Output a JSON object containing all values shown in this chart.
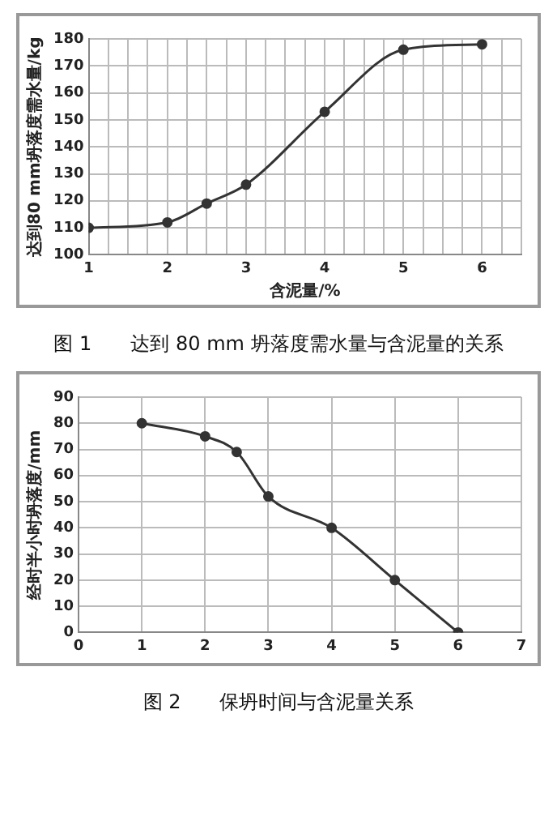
{
  "chart_data": [
    {
      "type": "line",
      "title": "图 1　　达到 80 mm 坍落度需水量与含泥量的关系",
      "xlabel": "含泥量/%",
      "ylabel": "达到80 mm坍落度需水量/kg",
      "x": [
        1,
        2,
        2.5,
        3,
        4,
        5,
        6
      ],
      "series": [
        {
          "color": "#333333",
          "values": [
            110,
            112,
            119,
            126,
            153,
            176,
            178
          ]
        }
      ],
      "xlim": [
        1,
        6.5
      ],
      "xticks": [
        1,
        {
          "value": 1.25,
          "label": null
        },
        {
          "value": 1.5,
          "label": null
        },
        {
          "value": 1.75,
          "label": null
        },
        2,
        {
          "value": 2.25,
          "label": null
        },
        {
          "value": 2.5,
          "label": null
        },
        {
          "value": 2.75,
          "label": null
        },
        3,
        {
          "value": 3.25,
          "label": null
        },
        {
          "value": 3.5,
          "label": null
        },
        {
          "value": 3.75,
          "label": null
        },
        4,
        {
          "value": 4.25,
          "label": null
        },
        {
          "value": 4.5,
          "label": null
        },
        {
          "value": 4.75,
          "label": null
        },
        5,
        {
          "value": 5.25,
          "label": null
        },
        {
          "value": 5.5,
          "label": null
        },
        {
          "value": 5.75,
          "label": null
        },
        6,
        {
          "value": 6.25,
          "label": null
        },
        {
          "value": 6.5,
          "label": null
        }
      ],
      "ylim": [
        100,
        180
      ],
      "yticks": [
        100,
        110,
        120,
        130,
        140,
        150,
        160,
        170,
        180
      ],
      "grid": true,
      "legend": false,
      "marker": "circle",
      "line_style": "solid"
    },
    {
      "type": "line",
      "title": "图 2　　保坍时间与含泥量关系",
      "ylabel": "经时半小时坍落度/mm",
      "x": [
        1,
        2,
        2.5,
        3,
        4,
        5,
        6
      ],
      "series": [
        {
          "color": "#333333",
          "values": [
            80,
            75,
            69,
            52,
            40,
            20,
            0
          ]
        }
      ],
      "xlim": [
        0,
        7
      ],
      "xticks": [
        0,
        1,
        2,
        3,
        4,
        5,
        6,
        7
      ],
      "ylim": [
        0,
        90
      ],
      "yticks": [
        0,
        10,
        20,
        30,
        40,
        50,
        60,
        70,
        80,
        90
      ],
      "grid": true,
      "legend": false,
      "marker": "circle",
      "line_style": "solid"
    }
  ]
}
